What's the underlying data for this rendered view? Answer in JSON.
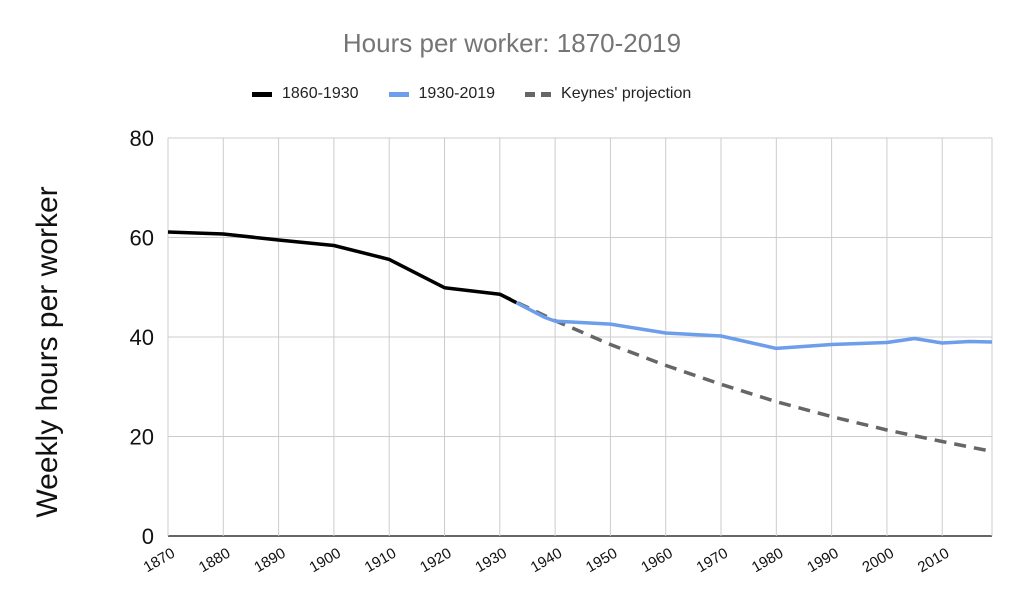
{
  "chart_data": {
    "type": "line",
    "title": "Hours per worker: 1870-2019",
    "xlabel": "",
    "ylabel": "Weekly hours per worker",
    "xlim": [
      1870,
      2019
    ],
    "ylim": [
      0,
      80
    ],
    "yticks": [
      0,
      20,
      40,
      60,
      80
    ],
    "xticks": [
      1870,
      1880,
      1890,
      1900,
      1910,
      1920,
      1930,
      1940,
      1950,
      1960,
      1970,
      1980,
      1990,
      2000,
      2010
    ],
    "grid": true,
    "legend_position": "top-center",
    "series": [
      {
        "name": "1860-1930",
        "color": "#000000",
        "style": "solid",
        "points": [
          [
            1870,
            61.1
          ],
          [
            1880,
            60.7
          ],
          [
            1890,
            59.5
          ],
          [
            1900,
            58.4
          ],
          [
            1910,
            55.6
          ],
          [
            1920,
            49.9
          ],
          [
            1930,
            48.6
          ],
          [
            1933,
            46.9
          ]
        ]
      },
      {
        "name": "1930-2019",
        "color": "#6d9eeb",
        "style": "solid",
        "points": [
          [
            1933,
            46.9
          ],
          [
            1938,
            44.0
          ],
          [
            1940,
            43.2
          ],
          [
            1950,
            42.6
          ],
          [
            1960,
            40.8
          ],
          [
            1970,
            40.2
          ],
          [
            1980,
            37.7
          ],
          [
            1990,
            38.5
          ],
          [
            2000,
            38.9
          ],
          [
            2005,
            39.7
          ],
          [
            2010,
            38.8
          ],
          [
            2015,
            39.1
          ],
          [
            2019,
            39.0
          ]
        ]
      },
      {
        "name": "Keynes' projection",
        "color": "#666666",
        "style": "dashed",
        "points": [
          [
            1930,
            48.6
          ],
          [
            1940,
            43.3
          ],
          [
            1950,
            38.5
          ],
          [
            1960,
            34.3
          ],
          [
            1970,
            30.5
          ],
          [
            1980,
            27.0
          ],
          [
            1990,
            24.0
          ],
          [
            2000,
            21.3
          ],
          [
            2010,
            19.0
          ],
          [
            2019,
            17.0
          ]
        ]
      }
    ]
  }
}
